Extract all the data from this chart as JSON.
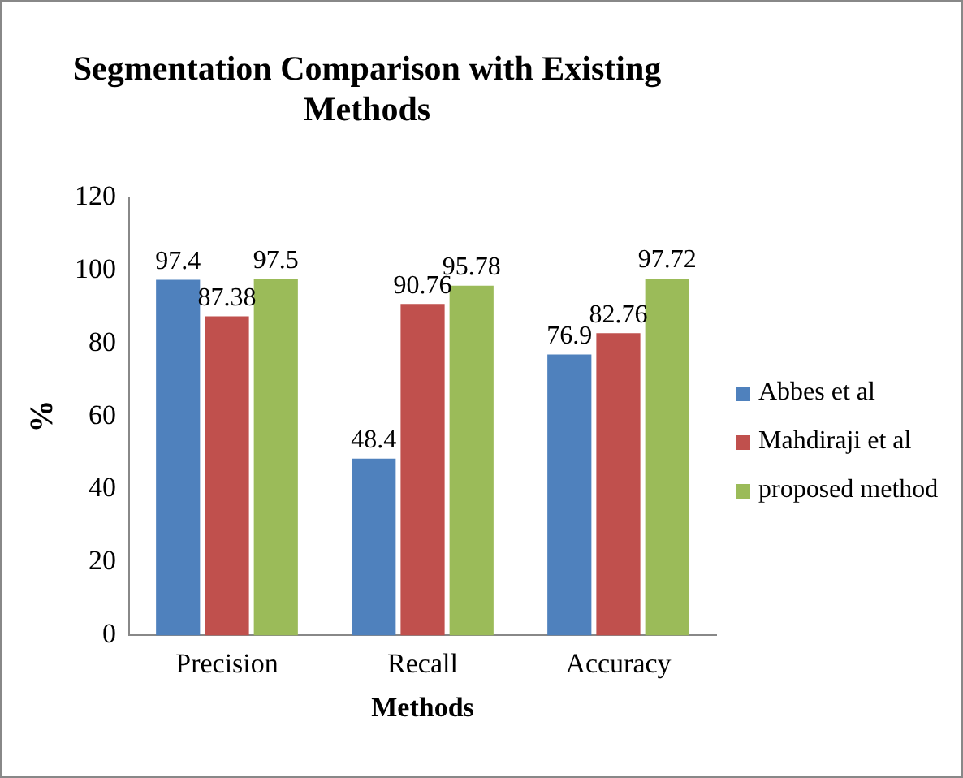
{
  "chart_data": {
    "type": "bar",
    "title": "Segmentation Comparison with Existing Methods",
    "xlabel": "Methods",
    "ylabel": "%",
    "categories": [
      "Precision",
      "Recall",
      "Accuracy"
    ],
    "series": [
      {
        "name": "Abbes  et al",
        "color": "#4f81bd",
        "values": [
          97.4,
          48.4,
          76.9
        ]
      },
      {
        "name": "Mahdiraji et al",
        "color": "#c0504d",
        "values": [
          87.38,
          90.76,
          82.76
        ]
      },
      {
        "name": "proposed method",
        "color": "#9bbb59",
        "values": [
          97.5,
          95.78,
          97.72
        ]
      }
    ],
    "ylim": [
      0,
      120
    ],
    "yticks": [
      0,
      20,
      40,
      60,
      80,
      100,
      120
    ],
    "grid": false,
    "legend": "right",
    "data_labels": true
  }
}
